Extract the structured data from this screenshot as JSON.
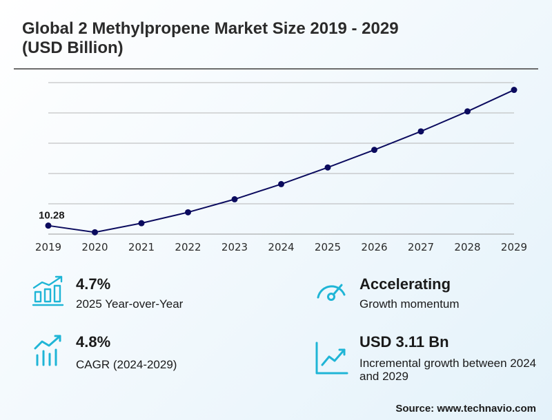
{
  "title": "Global 2 Methylpropene Market Size 2019 - 2029 (USD Billion)",
  "chart_data": {
    "type": "line",
    "title": "Global 2 Methylpropene Market Size 2019 - 2029 (USD Billion)",
    "xlabel": "",
    "ylabel": "",
    "categories": [
      "2019",
      "2020",
      "2021",
      "2022",
      "2023",
      "2024",
      "2025",
      "2026",
      "2027",
      "2028",
      "2029"
    ],
    "series": [
      {
        "values": [
          10.28,
          10.06,
          10.36,
          10.72,
          11.15,
          11.65,
          12.2,
          12.78,
          13.39,
          14.05,
          14.76
        ]
      }
    ],
    "ylim": [
      10.0,
      15.0
    ],
    "grid": true,
    "annotations": [
      {
        "index": 0,
        "label": "10.28"
      }
    ],
    "line_color": "#0b0b5e"
  },
  "stats": [
    {
      "value": "4.7%",
      "desc": "2025 Year-over-Year",
      "icon": "bar-growth-icon"
    },
    {
      "value": "Accelerating",
      "desc": "Growth momentum",
      "icon": "gauge-icon"
    },
    {
      "value": "4.8%",
      "desc": "CAGR (2024-2029)",
      "icon": "bars-trend-icon"
    },
    {
      "value": "USD 3.11 Bn",
      "desc": "Incremental growth between 2024 and 2029",
      "icon": "trend-chart-icon"
    }
  ],
  "icon_color": "#1fb5d6",
  "source": "Source: www.technavio.com"
}
